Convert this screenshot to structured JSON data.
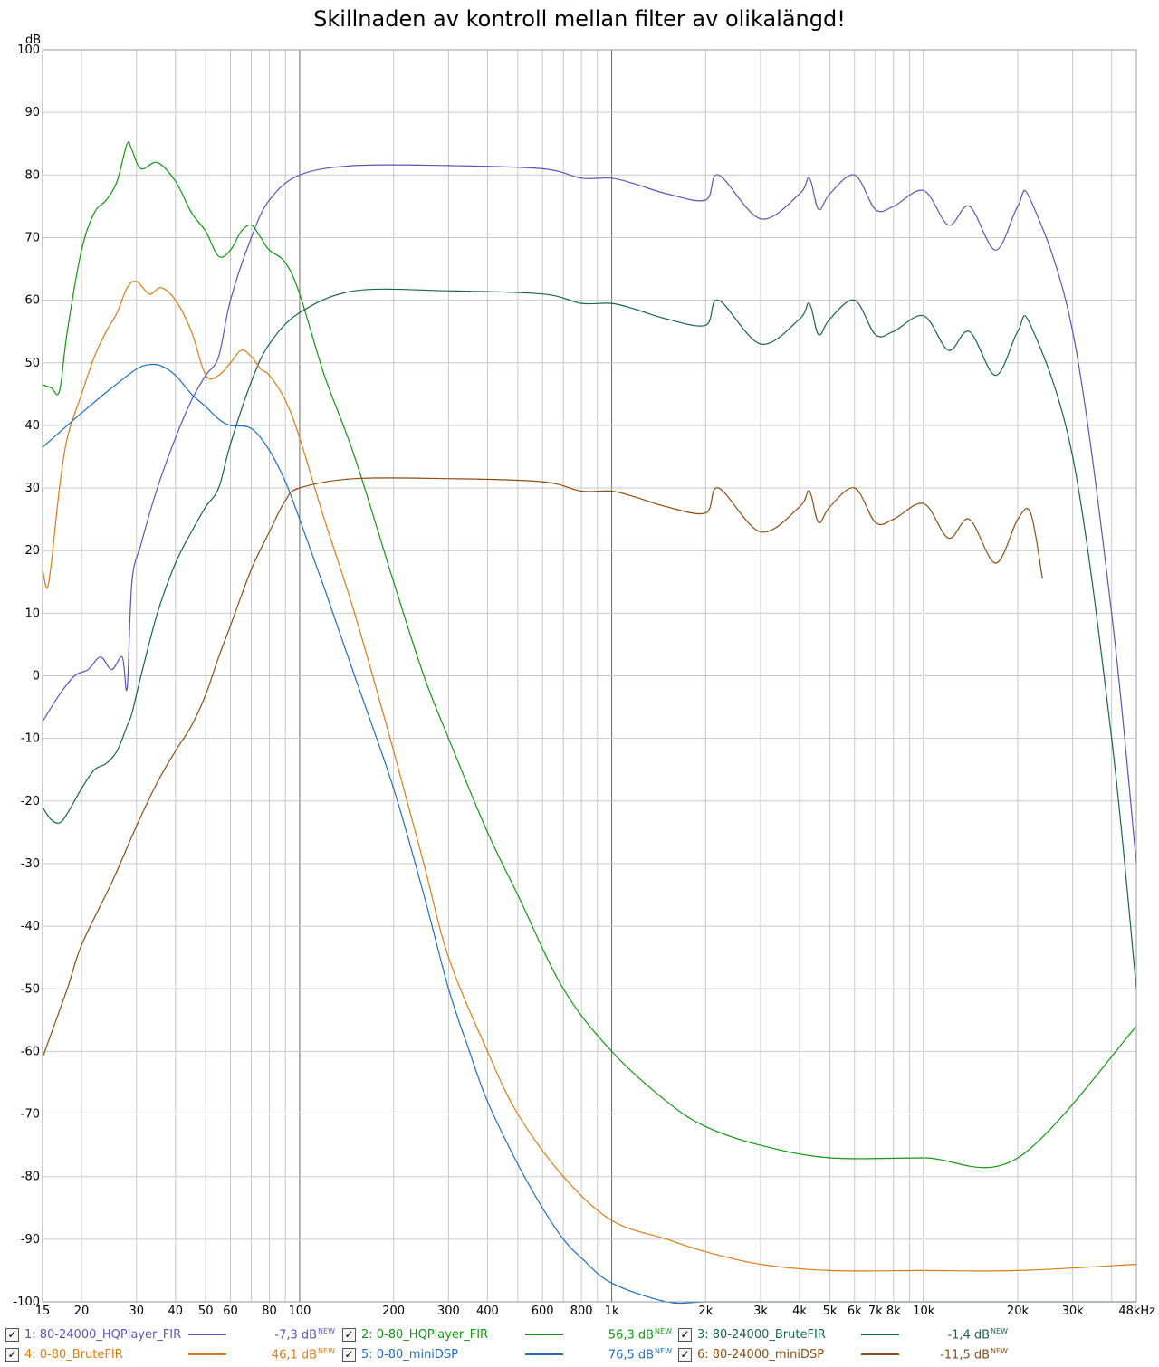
{
  "chart_data": {
    "type": "line",
    "title": "Skillnaden av kontroll mellan filter av olikalängd!",
    "y_unit": "dB",
    "x_scale": "log",
    "xlim": [
      15,
      48000
    ],
    "ylim": [
      -100,
      100
    ],
    "grid": true,
    "legend_position": "bottom",
    "x_ticks": [
      15,
      20,
      30,
      40,
      50,
      60,
      80,
      100,
      200,
      300,
      400,
      600,
      800,
      1000,
      2000,
      3000,
      4000,
      5000,
      6000,
      7000,
      8000,
      10000,
      20000,
      30000,
      48000
    ],
    "x_tick_labels": [
      "15",
      "20",
      "30",
      "40",
      "50",
      "60",
      "80",
      "100",
      "200",
      "300",
      "400",
      "600",
      "800",
      "1k",
      "2k",
      "3k",
      "4k",
      "5k",
      "6k",
      "7k",
      "8k",
      "10k",
      "20k",
      "30k",
      "48kHz"
    ],
    "y_ticks": [
      100,
      90,
      80,
      70,
      60,
      50,
      40,
      30,
      20,
      10,
      0,
      -10,
      -20,
      -30,
      -40,
      -50,
      -60,
      -70,
      -80,
      -90,
      -100
    ],
    "y_tick_labels": [
      "100",
      "90",
      "80",
      "70",
      "60",
      "50",
      "40",
      "30",
      "20",
      "10",
      "0",
      "-10",
      "-20",
      "-30",
      "-40",
      "-50",
      "-60",
      "-70",
      "-80",
      "-90",
      "-100"
    ],
    "series": [
      {
        "name": "1: 80-24000_HQPlayer_FIR",
        "color": "#5b55b8",
        "readout": "-7,3 dB",
        "x": [
          15,
          17,
          19,
          21,
          23,
          25,
          27,
          28,
          29,
          31,
          35,
          40,
          45,
          50,
          55,
          60,
          70,
          80,
          100,
          150,
          300,
          600,
          800,
          1000,
          1200,
          1500,
          2000,
          2200,
          3000,
          4000,
          4300,
          4600,
          5000,
          6000,
          7000,
          8000,
          10000,
          12000,
          14000,
          17000,
          20000,
          22000,
          30000,
          40000,
          48000
        ],
        "y": [
          -7.3,
          -3,
          0,
          1,
          3,
          1,
          3,
          -2,
          15,
          21,
          30,
          38,
          44,
          48,
          51,
          60,
          70,
          76,
          80,
          81.5,
          81.5,
          81,
          79.5,
          79.5,
          78.5,
          77,
          76,
          80,
          73,
          77,
          79.5,
          74.5,
          77,
          80,
          74.5,
          75,
          77.5,
          72,
          75,
          68,
          75,
          76,
          55,
          10,
          -30
        ]
      },
      {
        "name": "2: 0-80_HQPlayer_FIR",
        "color": "#109810",
        "readout": "56,3 dB",
        "x": [
          15,
          16,
          17,
          18,
          20,
          22,
          24,
          26,
          28,
          29,
          31,
          35,
          40,
          45,
          50,
          55,
          60,
          65,
          70,
          75,
          80,
          90,
          100,
          120,
          150,
          200,
          250,
          300,
          400,
          500,
          700,
          1000,
          1500,
          2000,
          3000,
          5000,
          10000,
          20000,
          48000
        ],
        "y": [
          46.5,
          46,
          45.5,
          55,
          68,
          74,
          76,
          79,
          85,
          84,
          81,
          82,
          79,
          74,
          71,
          67,
          68,
          71,
          72,
          70,
          68,
          66,
          61,
          48,
          35,
          15,
          0,
          -10,
          -25,
          -35,
          -50,
          -60,
          -68,
          -72,
          -75,
          -77,
          -77,
          -77,
          -56
        ]
      },
      {
        "name": "3: 80-24000_BruteFIR",
        "color": "#18654a",
        "readout": "-1,4 dB",
        "x": [
          15,
          16,
          17,
          18,
          20,
          22,
          24,
          26,
          28,
          29,
          31,
          35,
          40,
          45,
          50,
          55,
          60,
          70,
          80,
          100,
          150,
          300,
          600,
          800,
          1000,
          1200,
          1500,
          2000,
          2200,
          3000,
          4000,
          4300,
          4600,
          5000,
          6000,
          7000,
          8000,
          10000,
          12000,
          14000,
          17000,
          20000,
          22000,
          30000,
          40000,
          48000
        ],
        "y": [
          -21,
          -23,
          -23.5,
          -22,
          -18,
          -15,
          -14,
          -12,
          -8,
          -6,
          0,
          10,
          18,
          23,
          27,
          30,
          37,
          47,
          53,
          58,
          61.5,
          61.5,
          61,
          59.5,
          59.5,
          58.5,
          57,
          56,
          60,
          53,
          57,
          59.5,
          54.5,
          57,
          60,
          54.5,
          55,
          57.5,
          52,
          55,
          48,
          55,
          56,
          35,
          -10,
          -50
        ]
      },
      {
        "name": "4: 0-80_BruteFIR",
        "color": "#d97c16",
        "readout": "46,1 dB",
        "x": [
          15,
          15.5,
          16,
          17,
          18,
          20,
          22,
          24,
          26,
          28,
          30,
          33,
          36,
          40,
          45,
          50,
          55,
          60,
          65,
          70,
          75,
          80,
          90,
          100,
          120,
          150,
          200,
          250,
          300,
          400,
          500,
          700,
          1000,
          1500,
          2000,
          3000,
          5000,
          10000,
          20000,
          48000
        ],
        "y": [
          17,
          14,
          18,
          30,
          38,
          45,
          51,
          55,
          58,
          62,
          63,
          61,
          62,
          60,
          55,
          48,
          48,
          50,
          52,
          51,
          49,
          48,
          44,
          38,
          25,
          10,
          -12,
          -30,
          -45,
          -60,
          -70,
          -80,
          -87,
          -90,
          -92,
          -94,
          -95,
          -95,
          -95,
          -94
        ]
      },
      {
        "name": "5: 0-80_miniDSP",
        "color": "#1f6ec0",
        "readout": "76,5 dB",
        "x": [
          15,
          18,
          20,
          25,
          30,
          33,
          36,
          40,
          45,
          50,
          55,
          60,
          70,
          80,
          90,
          100,
          120,
          150,
          200,
          250,
          300,
          350,
          400,
          500,
          600,
          700,
          800,
          1000,
          1500,
          2000,
          3000,
          5000,
          10000,
          20000,
          48000
        ],
        "y": [
          36.5,
          40,
          42,
          46,
          49,
          49.7,
          49.5,
          48,
          45,
          43,
          41,
          40,
          39.5,
          36,
          31,
          25,
          14,
          0,
          -18,
          -35,
          -50,
          -60,
          -68,
          -78,
          -85,
          -90,
          -93,
          -97,
          -100,
          -100,
          -100,
          -100,
          -100,
          -100,
          -100
        ]
      },
      {
        "name": "6: 80-24000_miniDSP",
        "color": "#8d4d12",
        "readout": "-11,5 dB",
        "x": [
          15,
          18,
          20,
          25,
          30,
          35,
          40,
          45,
          50,
          55,
          60,
          70,
          80,
          90,
          100,
          150,
          300,
          600,
          800,
          1000,
          1200,
          1500,
          2000,
          2200,
          3000,
          4000,
          4300,
          4600,
          5000,
          6000,
          7000,
          8000,
          10000,
          12000,
          14000,
          17000,
          20000,
          22000,
          24000
        ],
        "y": [
          -61,
          -50,
          -43,
          -33,
          -24,
          -17,
          -12,
          -8,
          -3,
          3,
          8,
          17,
          23,
          28,
          30,
          31.5,
          31.5,
          31,
          29.5,
          29.5,
          28.5,
          27,
          26,
          30,
          23,
          27,
          29.5,
          24.5,
          27,
          30,
          24.5,
          25,
          27.5,
          22,
          25,
          18,
          25,
          26,
          15.5
        ]
      }
    ]
  },
  "legend": {
    "items": [
      {
        "label": "1: 80-24000_HQPlayer_FIR",
        "value": "-7,3 dB",
        "badge": "NEW",
        "color": "#5b55b8"
      },
      {
        "label": "2: 0-80_HQPlayer_FIR",
        "value": "56,3 dB",
        "badge": "NEW",
        "color": "#109810"
      },
      {
        "label": "3: 80-24000_BruteFIR",
        "value": "-1,4 dB",
        "badge": "NEW",
        "color": "#18654a"
      },
      {
        "label": "4: 0-80_BruteFIR",
        "value": "46,1 dB",
        "badge": "NEW",
        "color": "#d97c16"
      },
      {
        "label": "5: 0-80_miniDSP",
        "value": "76,5 dB",
        "badge": "NEW",
        "color": "#1f6ec0"
      },
      {
        "label": "6: 80-24000_miniDSP",
        "value": "-11,5 dB",
        "badge": "NEW",
        "color": "#8d4d12"
      }
    ],
    "checkbox_glyph": "✓",
    "checked": true
  }
}
